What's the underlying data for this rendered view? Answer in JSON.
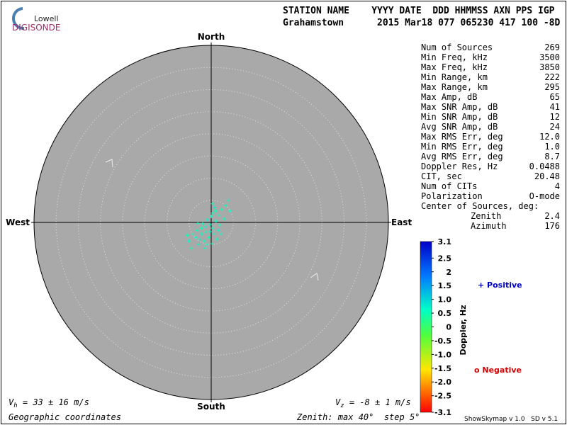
{
  "logo": {
    "top": "Lowell",
    "bottom": "DIGISONDE"
  },
  "header": {
    "columns": "STATION NAME    YYYY DATE  DDD HHMMSS AXN PPS IGP",
    "values": "Grahamstown      2015 Mar18 077 065230 417 100 -8D"
  },
  "stats": {
    "rows": [
      [
        "Num of Sources",
        "269"
      ],
      [
        "Min Freq, kHz",
        "3500"
      ],
      [
        "Max Freq, kHz",
        "3850"
      ],
      [
        "Min Range, km",
        "222"
      ],
      [
        "Max Range, km",
        "295"
      ],
      [
        "Max Amp, dB",
        "65"
      ],
      [
        "Max SNR Amp, dB",
        "41"
      ],
      [
        "Min SNR Amp, dB",
        "12"
      ],
      [
        "Avg SNR Amp, dB",
        "24"
      ],
      [
        "Max RMS Err, deg",
        "12.0"
      ],
      [
        "Min RMS Err, deg",
        "1.0"
      ],
      [
        "Avg RMS Err, deg",
        "8.7"
      ],
      [
        "Doppler Res, Hz",
        "0.0488"
      ],
      [
        "CIT, sec",
        "20.48"
      ],
      [
        "Num of CITs",
        "4"
      ],
      [
        "Polarization",
        "O-mode"
      ]
    ],
    "center_title": "Center of Sources, deg:",
    "center_rows": [
      [
        "Zenith",
        "2.4"
      ],
      [
        "Azimuth",
        "176"
      ]
    ]
  },
  "skymap": {
    "north": "North",
    "south": "South",
    "west": "West",
    "east": "East",
    "rlim": [
      0,
      40
    ],
    "ring_step": 5,
    "points": [
      {
        "x": 3.8,
        "y": 5.0,
        "doppler": 0.6
      },
      {
        "x": 3.2,
        "y": 3.8,
        "doppler": 0.5
      },
      {
        "x": 4.3,
        "y": 2.6,
        "doppler": 0.6
      },
      {
        "x": 2.4,
        "y": 2.9,
        "doppler": 0.5
      },
      {
        "x": 0.8,
        "y": 3.4,
        "doppler": 0.7
      },
      {
        "x": 0.3,
        "y": 2.1,
        "doppler": 0.5
      },
      {
        "x": 1.8,
        "y": 1.6,
        "doppler": 0.6
      },
      {
        "x": 2.9,
        "y": 0.8,
        "doppler": 0.5
      },
      {
        "x": 1.1,
        "y": 0.3,
        "doppler": 0.6
      },
      {
        "x": -0.3,
        "y": -0.5,
        "doppler": 0.7
      },
      {
        "x": -1.3,
        "y": -1.0,
        "doppler": 0.6
      },
      {
        "x": -2.2,
        "y": -1.3,
        "doppler": 0.5
      },
      {
        "x": -3.2,
        "y": -1.8,
        "doppler": 0.6
      },
      {
        "x": -4.2,
        "y": -2.6,
        "doppler": 0.5
      },
      {
        "x": -5.0,
        "y": -4.2,
        "doppler": 0.6
      },
      {
        "x": -4.5,
        "y": -5.8,
        "doppler": 0.5
      },
      {
        "x": -2.9,
        "y": -5.0,
        "doppler": 0.7
      },
      {
        "x": -1.6,
        "y": -4.2,
        "doppler": 0.6
      },
      {
        "x": -0.5,
        "y": -3.4,
        "doppler": 0.5
      },
      {
        "x": 0.6,
        "y": -2.6,
        "doppler": 0.6
      },
      {
        "x": 1.6,
        "y": -1.8,
        "doppler": 0.7
      },
      {
        "x": -2.1,
        "y": -2.6,
        "doppler": 0.6
      },
      {
        "x": -1.3,
        "y": -2.2,
        "doppler": 0.5
      },
      {
        "x": -0.3,
        "y": -2.1,
        "doppler": 0.6
      },
      {
        "x": 0.3,
        "y": -1.3,
        "doppler": 0.5
      },
      {
        "x": -3.5,
        "y": -3.4,
        "doppler": 0.6
      },
      {
        "x": -2.6,
        "y": -3.8,
        "doppler": 0.7
      },
      {
        "x": -1.0,
        "y": -5.0,
        "doppler": 0.6
      },
      {
        "x": 0.2,
        "y": -4.8,
        "doppler": 0.5
      },
      {
        "x": 1.3,
        "y": -3.8,
        "doppler": 0.6
      },
      {
        "x": 1.9,
        "y": -0.6,
        "doppler": 0.5
      },
      {
        "x": -1.9,
        "y": -0.3,
        "doppler": 0.6
      },
      {
        "x": -0.8,
        "y": 0.6,
        "doppler": 0.7
      },
      {
        "x": 0.0,
        "y": 1.4,
        "doppler": 0.6
      },
      {
        "x": 1.0,
        "y": 2.6,
        "doppler": 0.5
      },
      {
        "x": -3.0,
        "y": -0.2,
        "doppler": 0.6
      },
      {
        "x": 0.3,
        "y": 4.2,
        "doppler": 0.5
      },
      {
        "x": 2.2,
        "y": -2.6,
        "doppler": 0.6
      },
      {
        "x": -5.4,
        "y": -2.9,
        "doppler": 0.5
      },
      {
        "x": -1.4,
        "y": -5.8,
        "doppler": 0.6
      }
    ]
  },
  "colorbar": {
    "label": "Doppler, Hz",
    "lim": [
      -3.1,
      3.1
    ],
    "ticks": [
      3.1,
      2.5,
      2,
      1.5,
      {
        "value": 1,
        "label": "1.0"
      },
      0.5,
      0,
      -0.5,
      {
        "value": -1,
        "label": "-1.0"
      },
      -1.5,
      {
        "value": -2,
        "label": "-2.0"
      },
      -2.5,
      -3.1
    ]
  },
  "legend": {
    "positive": "+ Positive",
    "negative": "o Negative"
  },
  "footer": {
    "vh_symbol": "V",
    "vh_sub": "h",
    "vh_text": " = 33 ± 16 m/s",
    "vz_symbol": "V",
    "vz_sub": "z",
    "vz_text": " = -8 ± 1 m/s",
    "coords": "Geographic coordinates",
    "zenith": "Zenith: max 40°  step 5°",
    "version": "ShowSkymap v 1.0   SD v 5.1"
  }
}
